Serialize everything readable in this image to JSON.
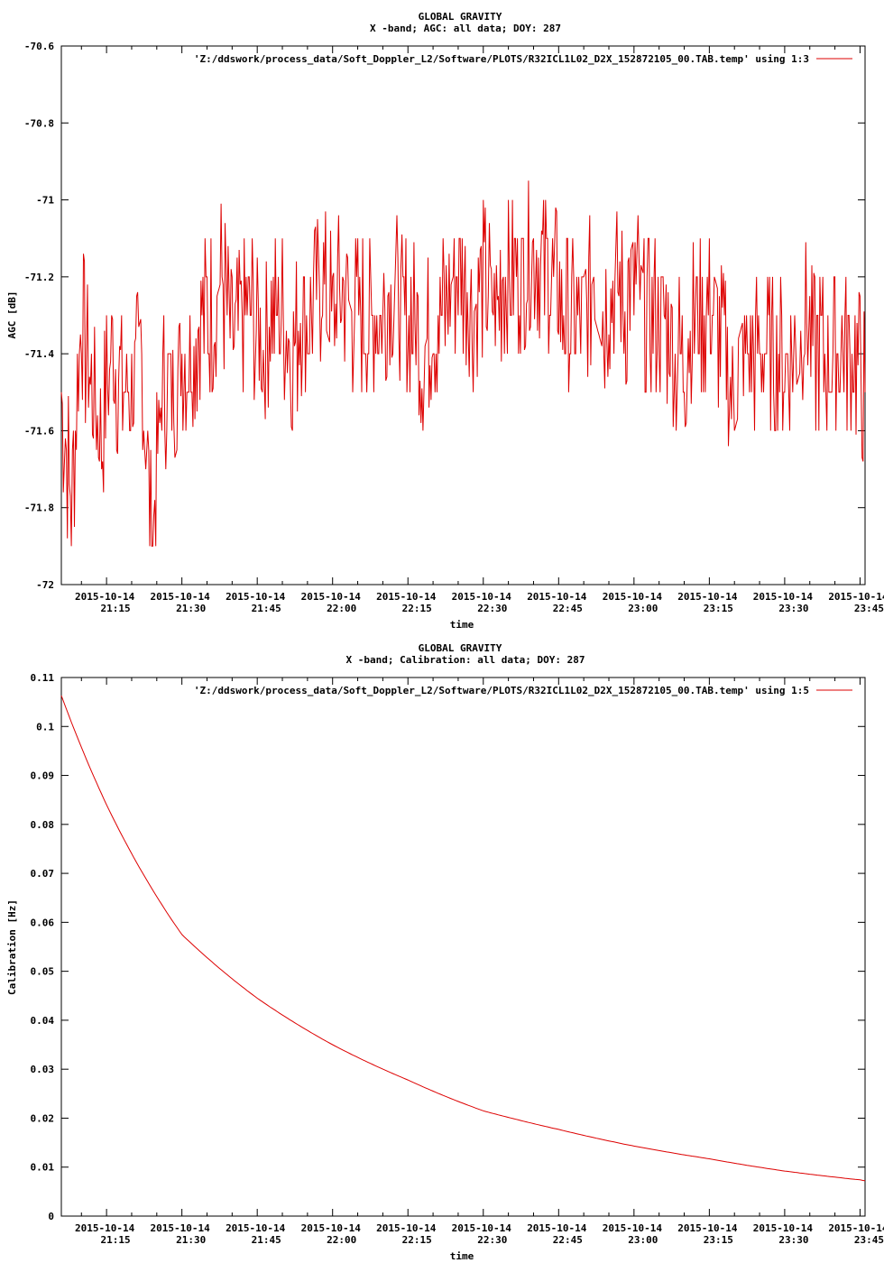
{
  "charts": {
    "agc": {
      "title": "GLOBAL GRAVITY",
      "subtitle": "X -band; AGC: all data; DOY: 287",
      "xlabel": "time",
      "ylabel": "AGC [dB]",
      "legend": "'Z:/ddswork/process_data/Soft_Doppler_L2/Software/PLOTS/R32ICL1L02_D2X_152872105_00.TAB.temp' using 1:3"
    },
    "cal": {
      "title": "GLOBAL GRAVITY",
      "subtitle": "X -band; Calibration: all data; DOY: 287",
      "xlabel": "time",
      "ylabel": "Calibration [Hz]",
      "legend": "'Z:/ddswork/process_data/Soft_Doppler_L2/Software/PLOTS/R32ICL1L02_D2X_152872105_00.TAB.temp' using 1:5"
    }
  },
  "chart_data": [
    {
      "type": "line",
      "title": "GLOBAL GRAVITY",
      "subtitle": "X -band; AGC: all data; DOY: 287",
      "xlabel": "time",
      "ylabel": "AGC [dB]",
      "xlim": [
        "2015-10-14 21:06",
        "2015-10-14 23:46"
      ],
      "ylim": [
        -72,
        -70.6
      ],
      "x_ticks": [
        "2015-10-14 21:15",
        "2015-10-14 21:30",
        "2015-10-14 21:45",
        "2015-10-14 22:00",
        "2015-10-14 22:15",
        "2015-10-14 22:30",
        "2015-10-14 22:45",
        "2015-10-14 23:00",
        "2015-10-14 23:15",
        "2015-10-14 23:30",
        "2015-10-14 23:45"
      ],
      "x_tick_labels": [
        [
          "2015-10-14",
          "21:15"
        ],
        [
          "2015-10-14",
          "21:30"
        ],
        [
          "2015-10-14",
          "21:45"
        ],
        [
          "2015-10-14",
          "22:00"
        ],
        [
          "2015-10-14",
          "22:15"
        ],
        [
          "2015-10-14",
          "22:30"
        ],
        [
          "2015-10-14",
          "22:45"
        ],
        [
          "2015-10-14",
          "23:00"
        ],
        [
          "2015-10-14",
          "23:15"
        ],
        [
          "2015-10-14",
          "23:30"
        ],
        [
          "2015-10-14",
          "23:45"
        ]
      ],
      "y_ticks": [
        -70.6,
        -70.8,
        -71,
        -71.2,
        -71.4,
        -71.6,
        -71.8,
        -72
      ],
      "y_tick_labels": [
        "-70.6",
        "-70.8",
        "-71",
        "-71.2",
        "-71.4",
        "-71.6",
        "-71.8",
        "-72"
      ],
      "grid": false,
      "legend_position": "top-right",
      "color": "#dd0000",
      "series": [
        {
          "name": "'Z:/ddswork/process_data/Soft_Doppler_L2/Software/PLOTS/R32ICL1L02_D2X_152872105_00.TAB.temp' using 1:3",
          "x": [
            "21:06",
            "21:08",
            "21:10",
            "21:12",
            "21:14",
            "21:16",
            "21:18",
            "21:20",
            "21:22",
            "21:24",
            "21:26",
            "21:28",
            "21:30",
            "21:32",
            "21:34",
            "21:36",
            "21:38",
            "21:40",
            "21:42",
            "21:44",
            "21:46",
            "21:48",
            "21:50",
            "21:52",
            "21:54",
            "21:56",
            "21:58",
            "22:00",
            "22:02",
            "22:04",
            "22:06",
            "22:08",
            "22:10",
            "22:12",
            "22:14",
            "22:16",
            "22:18",
            "22:20",
            "22:22",
            "22:24",
            "22:26",
            "22:28",
            "22:30",
            "22:32",
            "22:34",
            "22:36",
            "22:38",
            "22:40",
            "22:42",
            "22:44",
            "22:46",
            "22:48",
            "22:50",
            "22:52",
            "22:54",
            "22:56",
            "22:58",
            "23:00",
            "23:02",
            "23:04",
            "23:06",
            "23:08",
            "23:10",
            "23:12",
            "23:14",
            "23:16",
            "23:18",
            "23:20",
            "23:22",
            "23:24",
            "23:26",
            "23:28",
            "23:30",
            "23:32",
            "23:34",
            "23:36",
            "23:38",
            "23:40",
            "23:42",
            "23:44",
            "23:46"
          ],
          "values": [
            -71.5,
            -71.8,
            -71.3,
            -71.5,
            -71.6,
            -71.4,
            -71.5,
            -71.5,
            -71.4,
            -71.9,
            -71.5,
            -71.5,
            -71.4,
            -71.4,
            -71.3,
            -71.3,
            -71.2,
            -71.4,
            -71.3,
            -71.3,
            -71.4,
            -71.3,
            -71.3,
            -71.4,
            -71.3,
            -71.3,
            -71.2,
            -71.3,
            -71.2,
            -71.3,
            -71.3,
            -71.3,
            -71.3,
            -71.2,
            -71.3,
            -71.3,
            -71.4,
            -71.3,
            -71.3,
            -71.2,
            -71.2,
            -71.3,
            -71.2,
            -71.3,
            -71.2,
            -71.2,
            -71.2,
            -71.1,
            -71.2,
            -71.2,
            -71.3,
            -71.3,
            -71.3,
            -71.2,
            -71.3,
            -71.2,
            -71.3,
            -71.2,
            -71.3,
            -71.3,
            -71.3,
            -71.4,
            -71.4,
            -71.3,
            -71.3,
            -71.3,
            -71.4,
            -71.5,
            -71.4,
            -71.4,
            -71.4,
            -71.4,
            -71.4,
            -71.4,
            -71.3,
            -71.4,
            -71.4,
            -71.4,
            -71.4,
            -71.4,
            -71.5
          ]
        }
      ]
    },
    {
      "type": "line",
      "title": "GLOBAL GRAVITY",
      "subtitle": "X -band; Calibration: all data; DOY: 287",
      "xlabel": "time",
      "ylabel": "Calibration [Hz]",
      "xlim": [
        "2015-10-14 21:06",
        "2015-10-14 23:46"
      ],
      "ylim": [
        0,
        0.11
      ],
      "x_ticks": [
        "2015-10-14 21:15",
        "2015-10-14 21:30",
        "2015-10-14 21:45",
        "2015-10-14 22:00",
        "2015-10-14 22:15",
        "2015-10-14 22:30",
        "2015-10-14 22:45",
        "2015-10-14 23:00",
        "2015-10-14 23:15",
        "2015-10-14 23:30",
        "2015-10-14 23:45"
      ],
      "x_tick_labels": [
        [
          "2015-10-14",
          "21:15"
        ],
        [
          "2015-10-14",
          "21:30"
        ],
        [
          "2015-10-14",
          "21:45"
        ],
        [
          "2015-10-14",
          "22:00"
        ],
        [
          "2015-10-14",
          "22:15"
        ],
        [
          "2015-10-14",
          "22:30"
        ],
        [
          "2015-10-14",
          "22:45"
        ],
        [
          "2015-10-14",
          "23:00"
        ],
        [
          "2015-10-14",
          "23:15"
        ],
        [
          "2015-10-14",
          "23:30"
        ],
        [
          "2015-10-14",
          "23:45"
        ]
      ],
      "y_ticks": [
        0.11,
        0.1,
        0.09,
        0.08,
        0.07,
        0.06,
        0.05,
        0.04,
        0.03,
        0.02,
        0.01,
        0
      ],
      "y_tick_labels": [
        "0.11",
        "0.1",
        "0.09",
        "0.08",
        "0.07",
        "0.06",
        "0.05",
        "0.04",
        "0.03",
        "0.02",
        "0.01",
        "0"
      ],
      "grid": false,
      "legend_position": "top-right",
      "color": "#dd0000",
      "series": [
        {
          "name": "'Z:/ddswork/process_data/Soft_Doppler_L2/Software/PLOTS/R32ICL1L02_D2X_152872105_00.TAB.temp' using 1:5",
          "x": [
            "21:06",
            "21:15",
            "21:30",
            "21:45",
            "22:00",
            "22:15",
            "22:30",
            "22:45",
            "23:00",
            "23:15",
            "23:30",
            "23:45",
            "23:46"
          ],
          "values": [
            0.1063,
            0.084,
            0.0575,
            0.0445,
            0.035,
            0.0278,
            0.0215,
            0.0177,
            0.0143,
            0.0117,
            0.0092,
            0.0074,
            0.0072
          ]
        }
      ]
    }
  ]
}
